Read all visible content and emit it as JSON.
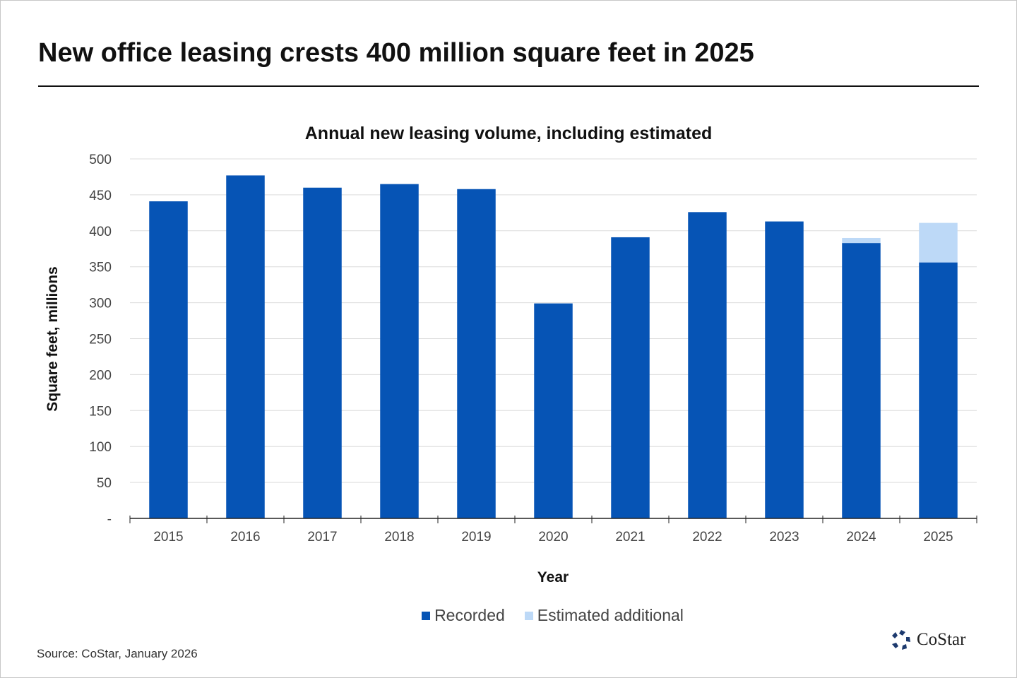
{
  "title": "New office leasing crests 400 million square feet in 2025",
  "source": "Source: CoStar, January 2026",
  "logo": "CoStar",
  "chart_data": {
    "type": "bar",
    "stacked": true,
    "title": "Annual new leasing volume, including estimated",
    "xlabel": "Year",
    "ylabel": "Square feet, millions",
    "ylim": [
      0,
      500
    ],
    "yticks": [
      "-",
      "50",
      "100",
      "150",
      "200",
      "250",
      "300",
      "350",
      "400",
      "450",
      "500"
    ],
    "grid": true,
    "legend_position": "bottom",
    "categories": [
      "2015",
      "2016",
      "2017",
      "2018",
      "2019",
      "2020",
      "2021",
      "2022",
      "2023",
      "2024",
      "2025"
    ],
    "series": [
      {
        "name": "Recorded",
        "color": "#0654b5",
        "values": [
          441,
          477,
          460,
          465,
          458,
          299,
          391,
          426,
          413,
          383,
          356
        ]
      },
      {
        "name": "Estimated additional",
        "color": "#bdd9f7",
        "values": [
          0,
          0,
          0,
          0,
          0,
          0,
          0,
          0,
          0,
          7,
          55
        ]
      }
    ]
  }
}
